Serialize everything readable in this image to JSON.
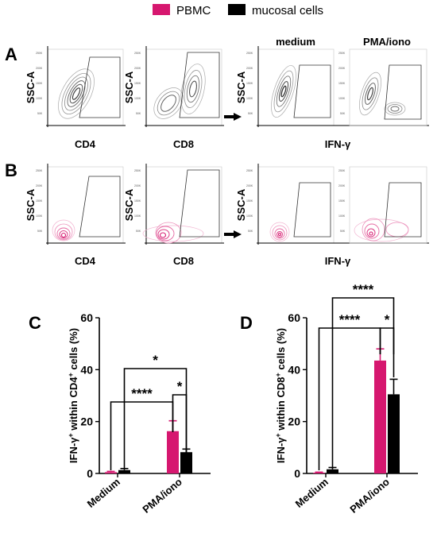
{
  "legend": {
    "items": [
      {
        "label": "PBMC",
        "color": "#d6176f"
      },
      {
        "label": "mucosal cells",
        "color": "#000000"
      }
    ]
  },
  "panels": {
    "A": {
      "letter": "A",
      "plots": [
        {
          "y_label": "SSC-A",
          "x_label": "CD4"
        },
        {
          "y_label": "SSC-A",
          "x_label": "CD8"
        },
        {
          "y_label": "SSC-A",
          "x_label": "IFN-γ"
        }
      ],
      "conditions": [
        "medium",
        "PMA/iono"
      ]
    },
    "B": {
      "letter": "B",
      "plots": [
        {
          "y_label": "SSC-A",
          "x_label": "CD4"
        },
        {
          "y_label": "SSC-A",
          "x_label": "CD8"
        },
        {
          "y_label": "SSC-A",
          "x_label": "IFN-γ"
        }
      ]
    },
    "C": {
      "letter": "C"
    },
    "D": {
      "letter": "D"
    }
  },
  "chart_data": [
    {
      "panel": "C",
      "type": "bar",
      "categories": [
        "Medium",
        "PMA/iono"
      ],
      "series": [
        {
          "name": "PBMC",
          "values": [
            0.5,
            16.3
          ],
          "errors": [
            0.3,
            4.0
          ],
          "color": "#d6176f"
        },
        {
          "name": "mucosal cells",
          "values": [
            1.3,
            8.2
          ],
          "errors": [
            0.6,
            1.2
          ],
          "color": "#000000"
        }
      ],
      "ylabel_base": "IFN-γ",
      "ylabel_tail": " within CD4",
      "ylabel_end": " cells (%)",
      "ylabel_sup": "+",
      "ylim": [
        0,
        60
      ],
      "yticks": [
        "0",
        "20",
        "40",
        "60"
      ],
      "significance": [
        {
          "label": "****",
          "from": "Medium",
          "to": "PMA/iono",
          "series_from": "PBMC",
          "series_to": "PBMC"
        },
        {
          "label": "*",
          "from": "PMA/iono",
          "to": "PMA/iono",
          "series_from": "PBMC",
          "series_to": "mucosal cells"
        },
        {
          "label": "*",
          "from": "Medium",
          "to": "PMA/iono",
          "series_from": "mucosal cells",
          "series_to": "mucosal cells"
        }
      ]
    },
    {
      "panel": "D",
      "type": "bar",
      "categories": [
        "Medium",
        "PMA/iono"
      ],
      "series": [
        {
          "name": "PBMC",
          "values": [
            0.3,
            43.5
          ],
          "errors": [
            0.2,
            4.5
          ],
          "color": "#d6176f"
        },
        {
          "name": "mucosal cells",
          "values": [
            1.6,
            30.5
          ],
          "errors": [
            0.7,
            5.8
          ],
          "color": "#000000"
        }
      ],
      "ylabel_base": "IFN-γ",
      "ylabel_tail": " within CD8",
      "ylabel_end": " cells (%)",
      "ylabel_sup": "+",
      "ylim": [
        0,
        60
      ],
      "yticks": [
        "0",
        "20",
        "40",
        "60"
      ],
      "significance": [
        {
          "label": "****",
          "from": "Medium",
          "to": "PMA/iono",
          "series_from": "PBMC",
          "series_to": "PBMC"
        },
        {
          "label": "*",
          "from": "PMA/iono",
          "to": "PMA/iono",
          "series_from": "PBMC",
          "series_to": "mucosal cells"
        },
        {
          "label": "****",
          "from": "Medium",
          "to": "PMA/iono",
          "series_from": "mucosal cells",
          "series_to": "mucosal cells"
        }
      ]
    }
  ]
}
